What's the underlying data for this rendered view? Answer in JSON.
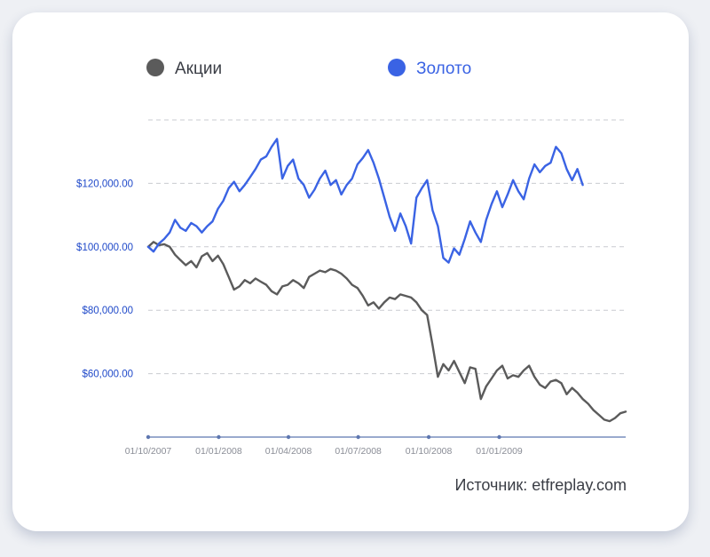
{
  "colors": {
    "stocks": "#5b5b5b",
    "gold": "#3a63e4",
    "tick_text": "#1f49c9",
    "x_tick_text": "#8a8d96",
    "axis": "#5e77b0",
    "grid": "#c9cbd1"
  },
  "legend": {
    "stocks_label": "Акции",
    "gold_label": "Золото"
  },
  "source_text": "Источник: etfreplay.com",
  "chart_data": {
    "type": "line",
    "title": "",
    "xlabel": "",
    "ylabel": "",
    "x_ticks": [
      "01/10/2007",
      "01/01/2008",
      "01/04/2008",
      "01/07/2008",
      "01/10/2008",
      "01/01/2009"
    ],
    "y_ticks": [
      "$60,000.00",
      "$80,000.00",
      "$100,000.00",
      "$120,000.00"
    ],
    "y_tick_values": [
      60000,
      80000,
      100000,
      120000
    ],
    "x_range": [
      "2007-10-01",
      "2009-06-15"
    ],
    "ylim": [
      40000,
      140000
    ],
    "grid": true,
    "legend_position": "top",
    "series": [
      {
        "name": "Акции",
        "color": "#5b5b5b",
        "points": [
          [
            "2007-10-01",
            100000
          ],
          [
            "2007-10-08",
            101500
          ],
          [
            "2007-10-15",
            100500
          ],
          [
            "2007-10-22",
            100800
          ],
          [
            "2007-10-29",
            100000
          ],
          [
            "2007-11-05",
            97500
          ],
          [
            "2007-11-12",
            95800
          ],
          [
            "2007-11-19",
            94200
          ],
          [
            "2007-11-26",
            95500
          ],
          [
            "2007-12-03",
            93500
          ],
          [
            "2007-12-10",
            97000
          ],
          [
            "2007-12-17",
            98000
          ],
          [
            "2007-12-24",
            95500
          ],
          [
            "2007-12-31",
            97200
          ],
          [
            "2008-01-07",
            94500
          ],
          [
            "2008-01-14",
            90500
          ],
          [
            "2008-01-21",
            86500
          ],
          [
            "2008-01-28",
            87500
          ],
          [
            "2008-02-04",
            89500
          ],
          [
            "2008-02-11",
            88500
          ],
          [
            "2008-02-18",
            90000
          ],
          [
            "2008-02-25",
            89000
          ],
          [
            "2008-03-03",
            88000
          ],
          [
            "2008-03-10",
            86000
          ],
          [
            "2008-03-17",
            85000
          ],
          [
            "2008-03-24",
            87500
          ],
          [
            "2008-03-31",
            88000
          ],
          [
            "2008-04-07",
            89500
          ],
          [
            "2008-04-14",
            88500
          ],
          [
            "2008-04-21",
            87000
          ],
          [
            "2008-04-28",
            90500
          ],
          [
            "2008-05-05",
            91500
          ],
          [
            "2008-05-12",
            92500
          ],
          [
            "2008-05-19",
            92000
          ],
          [
            "2008-05-26",
            93000
          ],
          [
            "2008-06-02",
            92500
          ],
          [
            "2008-06-09",
            91500
          ],
          [
            "2008-06-16",
            90000
          ],
          [
            "2008-06-23",
            88000
          ],
          [
            "2008-06-30",
            87000
          ],
          [
            "2008-07-07",
            84500
          ],
          [
            "2008-07-14",
            81500
          ],
          [
            "2008-07-21",
            82500
          ],
          [
            "2008-07-28",
            80500
          ],
          [
            "2008-08-04",
            82500
          ],
          [
            "2008-08-11",
            84000
          ],
          [
            "2008-08-18",
            83500
          ],
          [
            "2008-08-25",
            85000
          ],
          [
            "2008-09-01",
            84500
          ],
          [
            "2008-09-08",
            84000
          ],
          [
            "2008-09-15",
            82500
          ],
          [
            "2008-09-22",
            80000
          ],
          [
            "2008-09-29",
            78500
          ],
          [
            "2008-10-06",
            69000
          ],
          [
            "2008-10-13",
            59000
          ],
          [
            "2008-10-20",
            63000
          ],
          [
            "2008-10-27",
            61000
          ],
          [
            "2008-11-03",
            64000
          ],
          [
            "2008-11-10",
            60500
          ],
          [
            "2008-11-17",
            57000
          ],
          [
            "2008-11-24",
            62000
          ],
          [
            "2008-12-01",
            61500
          ],
          [
            "2008-12-08",
            52000
          ],
          [
            "2008-12-15",
            56000
          ],
          [
            "2008-12-22",
            58500
          ],
          [
            "2008-12-29",
            61000
          ],
          [
            "2009-01-05",
            62500
          ],
          [
            "2009-01-12",
            58500
          ],
          [
            "2009-01-19",
            59500
          ],
          [
            "2009-01-26",
            59000
          ],
          [
            "2009-02-02",
            61000
          ],
          [
            "2009-02-09",
            62500
          ],
          [
            "2009-02-16",
            59000
          ],
          [
            "2009-02-23",
            56500
          ],
          [
            "2009-03-02",
            55500
          ],
          [
            "2009-03-09",
            57500
          ],
          [
            "2009-03-16",
            58000
          ],
          [
            "2009-03-23",
            57000
          ],
          [
            "2009-03-30",
            53500
          ],
          [
            "2009-04-06",
            55500
          ],
          [
            "2009-04-13",
            54000
          ],
          [
            "2009-04-20",
            52000
          ],
          [
            "2009-04-27",
            50500
          ],
          [
            "2009-05-04",
            48500
          ],
          [
            "2009-05-11",
            47000
          ],
          [
            "2009-05-18",
            45500
          ],
          [
            "2009-05-25",
            45000
          ],
          [
            "2009-06-01",
            46000
          ],
          [
            "2009-06-08",
            47500
          ],
          [
            "2009-06-15",
            48000
          ]
        ]
      },
      {
        "name": "Золото",
        "color": "#3a63e4",
        "points": [
          [
            "2007-10-01",
            100000
          ],
          [
            "2007-10-08",
            98500
          ],
          [
            "2007-10-15",
            101000
          ],
          [
            "2007-10-22",
            102500
          ],
          [
            "2007-10-29",
            104500
          ],
          [
            "2007-11-05",
            108500
          ],
          [
            "2007-11-12",
            106000
          ],
          [
            "2007-11-19",
            105000
          ],
          [
            "2007-11-26",
            107500
          ],
          [
            "2007-12-03",
            106500
          ],
          [
            "2007-12-10",
            104500
          ],
          [
            "2007-12-17",
            106500
          ],
          [
            "2007-12-24",
            108000
          ],
          [
            "2007-12-31",
            112000
          ],
          [
            "2008-01-07",
            114500
          ],
          [
            "2008-01-14",
            118500
          ],
          [
            "2008-01-21",
            120500
          ],
          [
            "2008-01-28",
            117500
          ],
          [
            "2008-02-04",
            119500
          ],
          [
            "2008-02-11",
            122000
          ],
          [
            "2008-02-18",
            124500
          ],
          [
            "2008-02-25",
            127500
          ],
          [
            "2008-03-03",
            128500
          ],
          [
            "2008-03-10",
            131500
          ],
          [
            "2008-03-17",
            134000
          ],
          [
            "2008-03-24",
            121500
          ],
          [
            "2008-03-31",
            125500
          ],
          [
            "2008-04-07",
            127500
          ],
          [
            "2008-04-14",
            121500
          ],
          [
            "2008-04-21",
            119500
          ],
          [
            "2008-04-28",
            115500
          ],
          [
            "2008-05-05",
            118000
          ],
          [
            "2008-05-12",
            121500
          ],
          [
            "2008-05-19",
            124000
          ],
          [
            "2008-05-26",
            119500
          ],
          [
            "2008-06-02",
            121000
          ],
          [
            "2008-06-09",
            116500
          ],
          [
            "2008-06-16",
            119500
          ],
          [
            "2008-06-23",
            121500
          ],
          [
            "2008-06-30",
            126000
          ],
          [
            "2008-07-07",
            128000
          ],
          [
            "2008-07-14",
            130500
          ],
          [
            "2008-07-21",
            126500
          ],
          [
            "2008-07-28",
            121500
          ],
          [
            "2008-08-04",
            115500
          ],
          [
            "2008-08-11",
            109500
          ],
          [
            "2008-08-18",
            105000
          ],
          [
            "2008-08-25",
            110500
          ],
          [
            "2008-09-01",
            106500
          ],
          [
            "2008-09-08",
            101000
          ],
          [
            "2008-09-15",
            115500
          ],
          [
            "2008-09-22",
            118500
          ],
          [
            "2008-09-29",
            121000
          ],
          [
            "2008-10-06",
            111500
          ],
          [
            "2008-10-13",
            106500
          ],
          [
            "2008-10-20",
            96500
          ],
          [
            "2008-10-27",
            95000
          ],
          [
            "2008-11-03",
            99500
          ],
          [
            "2008-11-10",
            97500
          ],
          [
            "2008-11-17",
            102500
          ],
          [
            "2008-11-24",
            108000
          ],
          [
            "2008-12-01",
            104500
          ],
          [
            "2008-12-08",
            101500
          ],
          [
            "2008-12-15",
            108500
          ],
          [
            "2008-12-22",
            113500
          ],
          [
            "2008-12-29",
            117500
          ],
          [
            "2009-01-05",
            112500
          ],
          [
            "2009-01-12",
            116500
          ],
          [
            "2009-01-19",
            121000
          ],
          [
            "2009-01-26",
            117500
          ],
          [
            "2009-02-02",
            115000
          ],
          [
            "2009-02-09",
            121500
          ],
          [
            "2009-02-16",
            126000
          ],
          [
            "2009-02-23",
            123500
          ],
          [
            "2009-03-02",
            125500
          ],
          [
            "2009-03-09",
            126500
          ],
          [
            "2009-03-16",
            131500
          ],
          [
            "2009-03-23",
            129500
          ],
          [
            "2009-03-30",
            124500
          ],
          [
            "2009-04-06",
            121000
          ],
          [
            "2009-04-13",
            124500
          ],
          [
            "2009-04-20",
            119500
          ]
        ]
      }
    ]
  }
}
